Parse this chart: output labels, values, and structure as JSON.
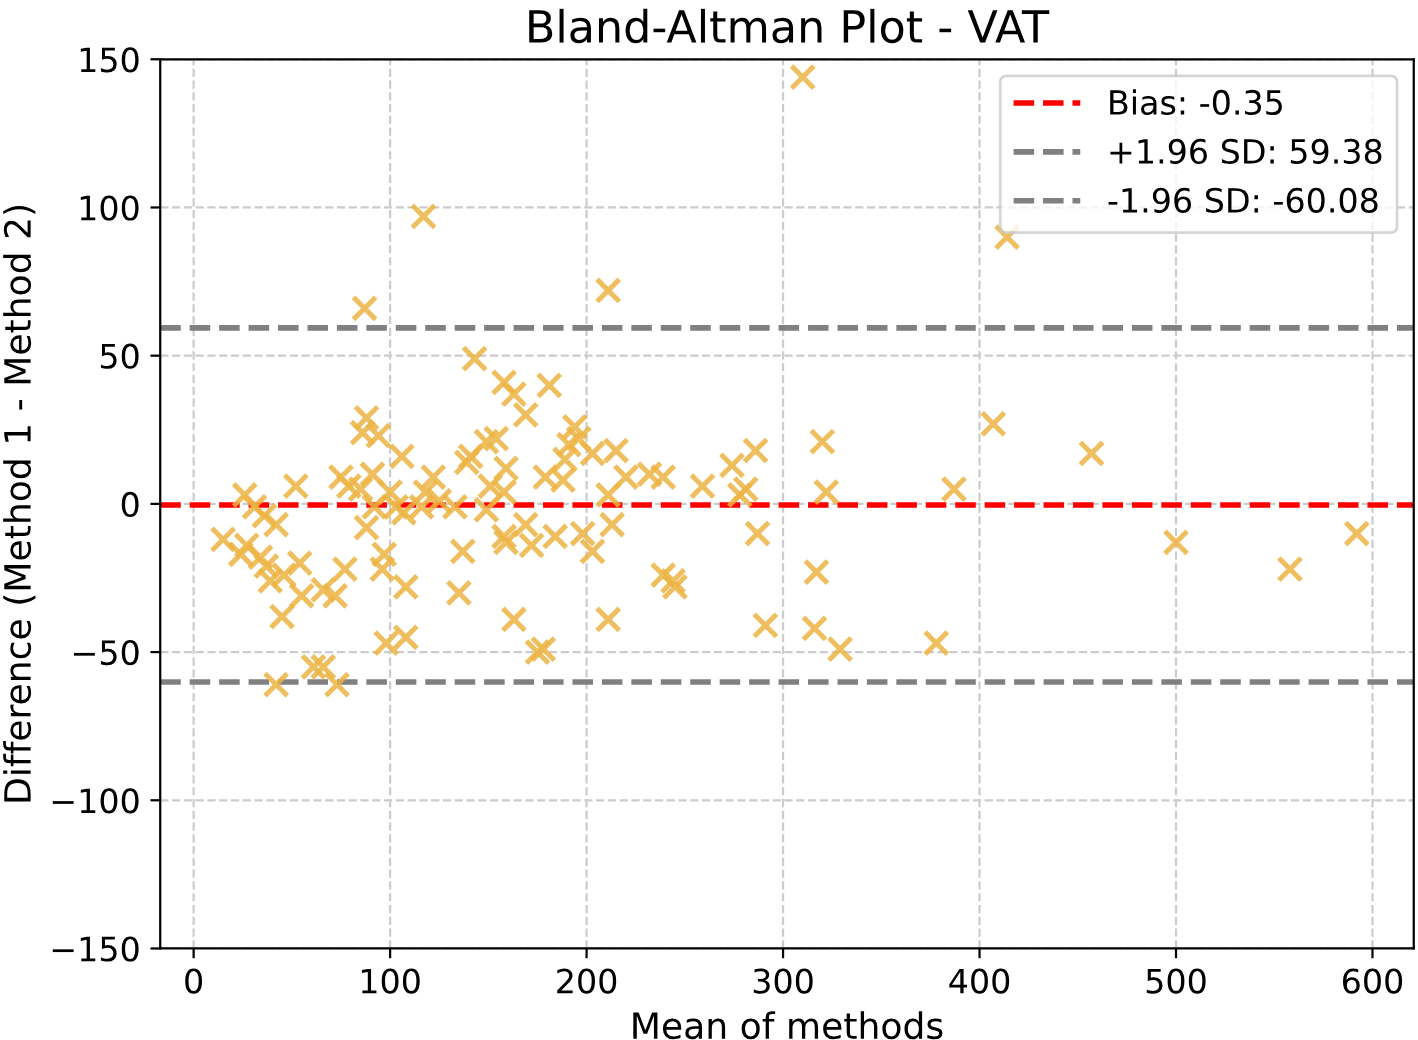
{
  "chart_data": {
    "type": "scatter",
    "title": "Bland-Altman Plot - VAT",
    "xlabel": "Mean of methods",
    "ylabel": "Difference (Method 1 - Method 2)",
    "x": [
      310,
      414,
      211,
      181,
      194,
      191,
      196,
      203,
      215,
      189,
      179,
      188,
      220,
      232,
      239,
      259,
      274,
      286,
      281,
      278,
      211,
      320,
      322,
      407,
      387,
      457,
      500,
      558,
      592,
      184,
      198,
      203,
      213,
      287,
      239,
      245,
      244,
      317,
      211,
      291,
      316,
      329,
      378,
      178,
      117,
      87,
      143,
      158,
      163,
      169,
      88,
      86,
      94,
      106,
      52,
      75,
      79,
      91,
      85,
      100,
      122,
      118,
      116,
      125,
      133,
      139,
      141,
      149,
      154,
      159,
      151,
      158,
      26,
      31,
      36,
      42,
      92,
      103,
      107,
      149,
      15,
      24,
      27,
      34,
      37,
      39,
      46,
      54,
      55,
      66,
      72,
      77,
      88,
      97,
      96,
      108,
      137,
      135,
      158,
      159,
      169,
      172,
      163,
      98,
      108,
      45,
      175,
      42,
      61,
      66,
      73
    ],
    "series": [
      {
        "color": "#ecb443",
        "marker": "cross",
        "values": [
          144,
          90,
          72,
          40,
          26,
          20,
          22,
          17,
          18,
          15,
          9,
          8,
          9,
          10,
          9,
          6,
          13,
          18,
          5,
          3,
          3,
          21,
          4,
          27,
          5,
          17,
          -13,
          -22,
          -10,
          -11,
          -10,
          -16,
          -7,
          -10,
          -24,
          -28,
          -26,
          -23,
          -39,
          -41,
          -42,
          -49,
          -47,
          -49,
          97,
          66,
          49,
          41,
          37,
          30,
          29,
          24,
          23,
          16,
          6,
          9,
          6,
          10,
          5,
          4,
          9,
          4,
          -1,
          1,
          -1,
          14,
          16,
          21,
          22,
          12,
          6,
          4,
          3,
          -1,
          -4,
          -7,
          -1,
          -1,
          -3,
          -2,
          -12,
          -17,
          -14,
          -18,
          -21,
          -26,
          -24,
          -20,
          -31,
          -29,
          -31,
          -22,
          -8,
          -17,
          -22,
          -28,
          -16,
          -30,
          -11,
          -13,
          -7,
          -14,
          -39,
          -47,
          -45,
          -38,
          -50,
          -61,
          -55,
          -55,
          -61
        ]
      }
    ],
    "xlim": [
      -17,
      621
    ],
    "ylim": [
      -150,
      150
    ],
    "xticks": [
      0,
      100,
      200,
      300,
      400,
      500,
      600
    ],
    "yticks": [
      -150,
      -100,
      -50,
      0,
      50,
      100,
      150
    ],
    "ref_lines": [
      {
        "axis": "y",
        "value": -0.35,
        "label": "Bias: -0.35",
        "color": "#ff0000",
        "line_style": "dashed"
      },
      {
        "axis": "y",
        "value": 59.38,
        "label": "+1.96 SD: 59.38",
        "color": "#808080",
        "line_style": "dashed"
      },
      {
        "axis": "y",
        "value": -60.08,
        "label": "-1.96 SD: -60.08",
        "color": "#808080",
        "line_style": "dashed"
      }
    ],
    "grid": true,
    "legend": "top right"
  }
}
